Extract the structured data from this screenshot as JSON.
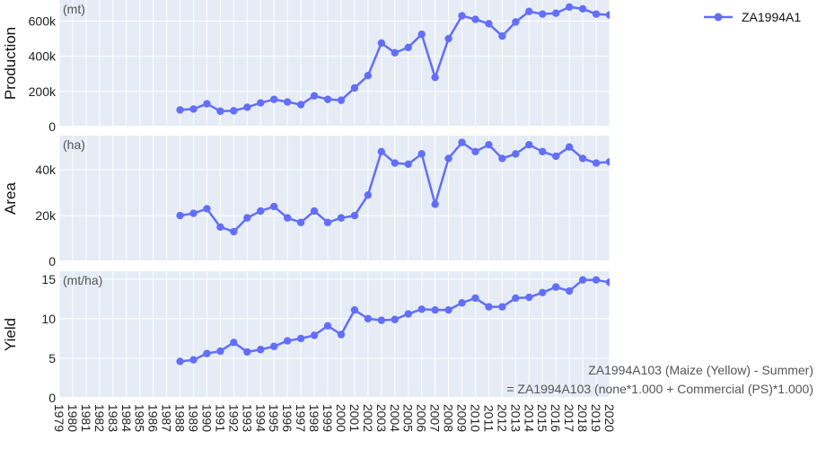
{
  "chart_data": {
    "type": "line",
    "legend": {
      "name": "ZA1994A1",
      "position": "top-right"
    },
    "series_color": "#636efa",
    "x_ticks": [
      "1979",
      "1980",
      "1981",
      "1982",
      "1983",
      "1984",
      "1985",
      "1986",
      "1987",
      "1988",
      "1989",
      "1990",
      "1991",
      "1992",
      "1993",
      "1994",
      "1995",
      "1996",
      "1997",
      "1998",
      "1999",
      "2000",
      "2001",
      "2002",
      "2003",
      "2004",
      "2005",
      "2006",
      "2007",
      "2008",
      "2009",
      "2010",
      "2011",
      "2012",
      "2013",
      "2014",
      "2015",
      "2016",
      "2017",
      "2018",
      "2019",
      "2020"
    ],
    "xlim": [
      1979,
      2020
    ],
    "x": [
      1988,
      1989,
      1990,
      1991,
      1992,
      1993,
      1994,
      1995,
      1996,
      1997,
      1998,
      1999,
      2000,
      2001,
      2002,
      2003,
      2004,
      2005,
      2006,
      2007,
      2008,
      2009,
      2010,
      2011,
      2012,
      2013,
      2014,
      2015,
      2016,
      2017,
      2018,
      2019,
      2020
    ],
    "panels": [
      {
        "ylabel": "Production",
        "unit": "(mt)",
        "ylim": [
          0,
          720000
        ],
        "y_ticks": [
          0,
          200000,
          400000,
          600000
        ],
        "y_tick_labels": [
          "0",
          "200k",
          "400k",
          "600k"
        ],
        "values": [
          95000,
          100000,
          130000,
          88000,
          90000,
          110000,
          135000,
          155000,
          140000,
          125000,
          175000,
          155000,
          150000,
          220000,
          290000,
          475000,
          420000,
          450000,
          525000,
          280000,
          500000,
          630000,
          610000,
          585000,
          515000,
          595000,
          655000,
          640000,
          645000,
          680000,
          670000,
          640000,
          635000
        ]
      },
      {
        "ylabel": "Area",
        "unit": "(ha)",
        "ylim": [
          0,
          55000
        ],
        "y_ticks": [
          0,
          20000,
          40000
        ],
        "y_tick_labels": [
          "0",
          "20k",
          "40k"
        ],
        "values": [
          20000,
          21000,
          23000,
          15000,
          13000,
          19000,
          22000,
          24000,
          19000,
          17000,
          22000,
          17000,
          19000,
          20000,
          29000,
          48000,
          43000,
          42500,
          47000,
          25000,
          45000,
          52000,
          48000,
          51000,
          45000,
          47000,
          51000,
          48000,
          46000,
          50000,
          45000,
          43000,
          43500
        ]
      },
      {
        "ylabel": "Yield",
        "unit": "(mt/ha)",
        "ylim": [
          0,
          16
        ],
        "y_ticks": [
          0,
          5,
          10,
          15
        ],
        "y_tick_labels": [
          "0",
          "5",
          "10",
          "15"
        ],
        "values": [
          4.6,
          4.8,
          5.6,
          5.9,
          7.0,
          5.8,
          6.1,
          6.5,
          7.2,
          7.5,
          7.9,
          9.1,
          8.0,
          11.1,
          10.0,
          9.8,
          9.9,
          10.6,
          11.2,
          11.1,
          11.1,
          12.0,
          12.6,
          11.5,
          11.5,
          12.6,
          12.7,
          13.3,
          14.0,
          13.5,
          14.9,
          14.9,
          14.6
        ]
      }
    ],
    "annotation": {
      "line1": "ZA1994A103 (Maize (Yellow) - Summer)",
      "line2": "= ZA1994A103 (none*1.000 + Commercial (PS)*1.000)"
    }
  }
}
